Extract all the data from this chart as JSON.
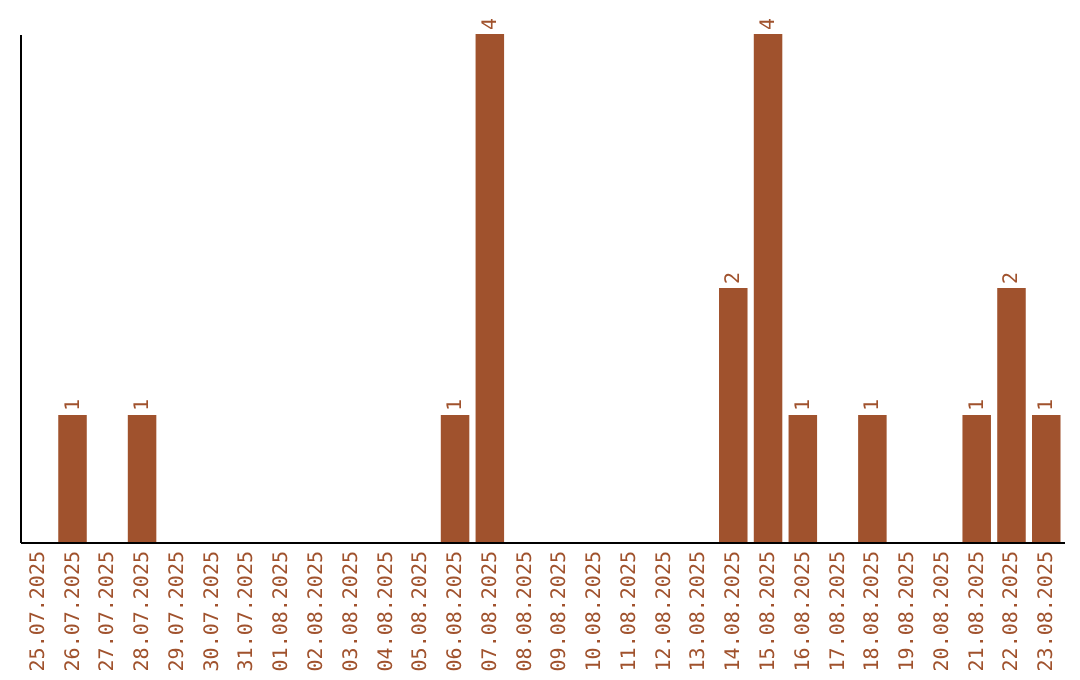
{
  "chart_data": {
    "type": "bar",
    "categories": [
      "25.07.2025",
      "26.07.2025",
      "27.07.2025",
      "28.07.2025",
      "29.07.2025",
      "30.07.2025",
      "31.07.2025",
      "01.08.2025",
      "02.08.2025",
      "03.08.2025",
      "04.08.2025",
      "05.08.2025",
      "06.08.2025",
      "07.08.2025",
      "08.08.2025",
      "09.08.2025",
      "10.08.2025",
      "11.08.2025",
      "12.08.2025",
      "13.08.2025",
      "14.08.2025",
      "15.08.2025",
      "16.08.2025",
      "17.08.2025",
      "18.08.2025",
      "19.08.2025",
      "20.08.2025",
      "21.08.2025",
      "22.08.2025",
      "23.08.2025"
    ],
    "values": [
      0,
      1,
      0,
      1,
      0,
      0,
      0,
      0,
      0,
      0,
      0,
      0,
      1,
      4,
      0,
      0,
      0,
      0,
      0,
      0,
      2,
      4,
      1,
      0,
      1,
      0,
      0,
      1,
      2,
      1
    ],
    "value_labels": [
      null,
      "1",
      null,
      "1",
      null,
      null,
      null,
      null,
      null,
      null,
      null,
      null,
      "1",
      "4",
      null,
      null,
      null,
      null,
      null,
      null,
      "2",
      "4",
      "1",
      null,
      "1",
      null,
      null,
      "1",
      "2",
      "1"
    ],
    "color": "#a0522d",
    "tick_labels": "x",
    "grid": false
  }
}
